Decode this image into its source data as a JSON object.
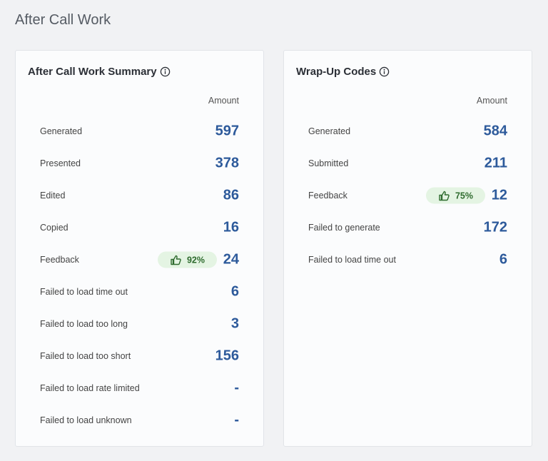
{
  "header": {
    "title": "After Call Work"
  },
  "cards": [
    {
      "title": "After Call Work Summary",
      "column_header": "Amount",
      "rows": [
        {
          "label": "Generated",
          "value": 597
        },
        {
          "label": "Presented",
          "value": 378
        },
        {
          "label": "Edited",
          "value": 86
        },
        {
          "label": "Copied",
          "value": 16
        },
        {
          "label": "Feedback",
          "badge": "92%",
          "value": 24
        },
        {
          "label": "Failed to load time out",
          "value": 6
        },
        {
          "label": "Failed to load too long",
          "value": 3
        },
        {
          "label": "Failed to load too short",
          "value": 156
        },
        {
          "label": "Failed to load rate limited",
          "value": "-"
        },
        {
          "label": "Failed to load unknown",
          "value": "-"
        }
      ]
    },
    {
      "title": "Wrap-Up Codes",
      "column_header": "Amount",
      "rows": [
        {
          "label": "Generated",
          "value": 584
        },
        {
          "label": "Submitted",
          "value": 211
        },
        {
          "label": "Feedback",
          "badge": "75%",
          "value": 12
        },
        {
          "label": "Failed to generate",
          "value": 172
        },
        {
          "label": "Failed to load time out",
          "value": 6
        }
      ]
    }
  ]
}
